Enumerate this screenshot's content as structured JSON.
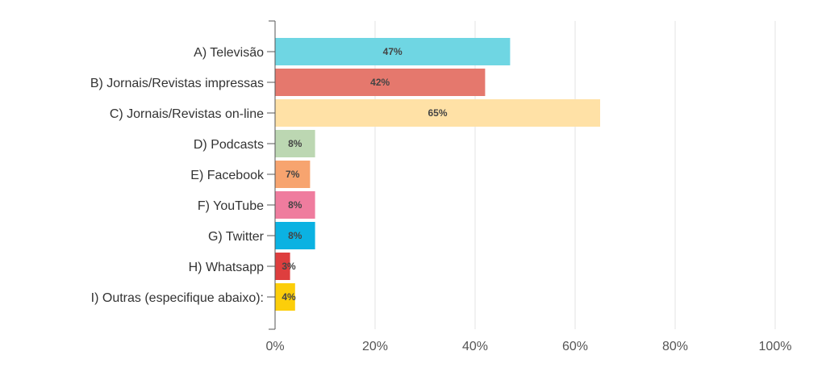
{
  "chart_data": {
    "type": "bar",
    "orientation": "horizontal",
    "categories": [
      "A) Televisão",
      "B) Jornais/Revistas impressas",
      "C) Jornais/Revistas on-line",
      "D) Podcasts",
      "E) Facebook",
      "F) YouTube",
      "G) Twitter",
      "H) Whatsapp",
      "I) Outras (especifique abaixo):"
    ],
    "values": [
      47,
      42,
      65,
      8,
      7,
      8,
      8,
      3,
      4
    ],
    "data_labels": [
      "47%",
      "42%",
      "65%",
      "8%",
      "7%",
      "8%",
      "8%",
      "3%",
      "4%"
    ],
    "colors": [
      "#6fd6e3",
      "#e5786d",
      "#ffe1a6",
      "#bcd7b2",
      "#f7a46f",
      "#ef7c9e",
      "#0bb2e2",
      "#de3e3e",
      "#fcce0a"
    ],
    "xlim": [
      0,
      100
    ],
    "x_ticks": [
      0,
      20,
      40,
      60,
      80,
      100
    ],
    "x_tick_labels": [
      "0%",
      "20%",
      "40%",
      "60%",
      "80%",
      "100%"
    ],
    "grid": true,
    "legend": "none"
  }
}
